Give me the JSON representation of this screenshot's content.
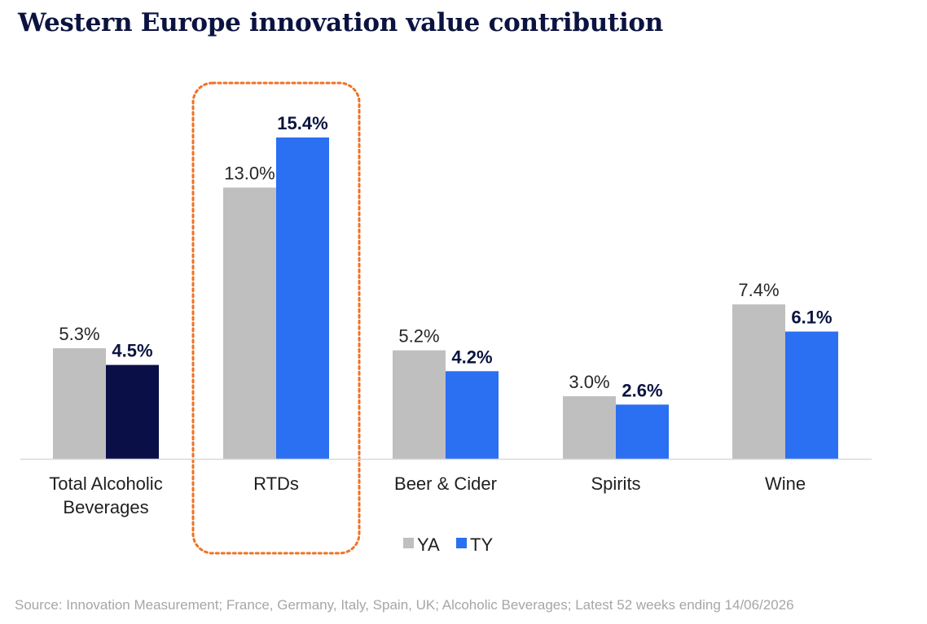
{
  "title": "Western Europe innovation value contribution",
  "source": "Source: Innovation Measurement; France, Germany, Italy, Spain, UK; Alcoholic Beverages; Latest 52 weeks ending 14/06/2026",
  "chart_data": {
    "type": "bar",
    "categories": [
      "Total Alcoholic Beverages",
      "RTDs",
      "Beer & Cider",
      "Spirits",
      "Wine"
    ],
    "category_label_lines": [
      [
        "Total Alcoholic",
        "Beverages"
      ],
      [
        "RTDs"
      ],
      [
        "Beer & Cider"
      ],
      [
        "Spirits"
      ],
      [
        "Wine"
      ]
    ],
    "series": [
      {
        "name": "YA",
        "values": [
          5.3,
          13.0,
          5.2,
          3.0,
          7.4
        ],
        "labels": [
          "5.3%",
          "13.0%",
          "5.2%",
          "3.0%",
          "7.4%"
        ],
        "color": "#bfbfbf"
      },
      {
        "name": "TY",
        "values": [
          4.5,
          15.4,
          4.2,
          2.6,
          6.1
        ],
        "labels": [
          "4.5%",
          "15.4%",
          "4.2%",
          "2.6%",
          "6.1%"
        ],
        "color": "#2b6ff2",
        "highlight_colors": [
          "#0b0f47",
          null,
          null,
          null,
          null
        ]
      }
    ],
    "ylim": [
      0,
      17
    ],
    "grid": false,
    "legend": "bottom-center",
    "highlighted_category": "RTDs",
    "highlight_color": "#ee7325"
  }
}
